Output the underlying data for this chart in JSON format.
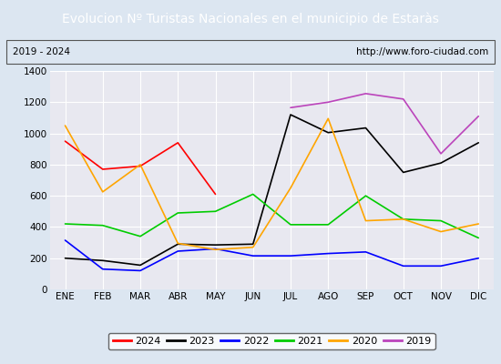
{
  "title": "Evolucion Nº Turistas Nacionales en el municipio de Estaràs",
  "subtitle_left": "2019 - 2024",
  "subtitle_right": "http://www.foro-ciudad.com",
  "months": [
    "ENE",
    "FEB",
    "MAR",
    "ABR",
    "MAY",
    "JUN",
    "JUL",
    "AGO",
    "SEP",
    "OCT",
    "NOV",
    "DIC"
  ],
  "series": {
    "2024": [
      950,
      770,
      790,
      940,
      610,
      null,
      null,
      null,
      null,
      null,
      null,
      null
    ],
    "2023": [
      200,
      185,
      155,
      290,
      285,
      290,
      1120,
      1005,
      1035,
      750,
      810,
      940
    ],
    "2022": [
      315,
      130,
      120,
      245,
      260,
      215,
      215,
      230,
      240,
      150,
      150,
      200
    ],
    "2021": [
      420,
      410,
      340,
      490,
      500,
      610,
      415,
      415,
      600,
      450,
      440,
      330
    ],
    "2020": [
      1050,
      625,
      800,
      295,
      255,
      270,
      650,
      1095,
      440,
      450,
      370,
      420
    ],
    "2019": [
      null,
      null,
      null,
      null,
      null,
      null,
      1165,
      1200,
      1255,
      1220,
      870,
      1110
    ]
  },
  "colors": {
    "2024": "#ff0000",
    "2023": "#000000",
    "2022": "#0000ff",
    "2021": "#00cc00",
    "2020": "#ffa500",
    "2019": "#bb44bb"
  },
  "ylim": [
    0,
    1400
  ],
  "yticks": [
    0,
    200,
    400,
    600,
    800,
    1000,
    1200,
    1400
  ],
  "title_bg_color": "#4472c4",
  "title_text_color": "#ffffff",
  "plot_bg_color": "#e8e8f0",
  "fig_bg_color": "#dce6f1",
  "grid_color": "#ffffff",
  "title_fontsize": 10,
  "tick_fontsize": 7.5,
  "legend_fontsize": 8
}
